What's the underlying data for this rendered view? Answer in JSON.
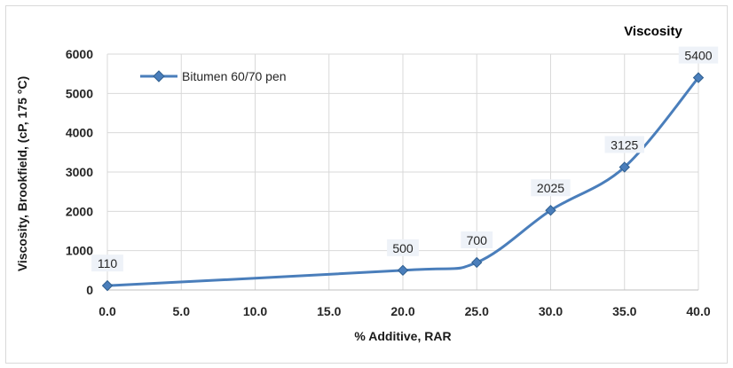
{
  "chart_data": {
    "type": "line",
    "title": "Viscosity",
    "xlabel": "% Additive, RAR",
    "ylabel": "Viscosity, Brookfield, (cP, 175 °C)",
    "x": [
      0.0,
      20.0,
      25.0,
      30.0,
      35.0,
      40.0
    ],
    "xlim": [
      0,
      40
    ],
    "ylim": [
      0,
      6000
    ],
    "xticks": [
      "0.0",
      "5.0",
      "10.0",
      "15.0",
      "20.0",
      "25.0",
      "30.0",
      "35.0",
      "40.0"
    ],
    "yticks": [
      "0",
      "1000",
      "2000",
      "3000",
      "4000",
      "5000",
      "6000"
    ],
    "grid": true,
    "legend_position": "top-left",
    "series": [
      {
        "name": "Bitumen 60/70 pen",
        "values": [
          110,
          500,
          700,
          2025,
          3125,
          5400
        ],
        "data_labels": [
          "110",
          "500",
          "700",
          "2025",
          "3125",
          "5400"
        ],
        "color": "#4a7ebb",
        "marker": "diamond"
      }
    ]
  }
}
